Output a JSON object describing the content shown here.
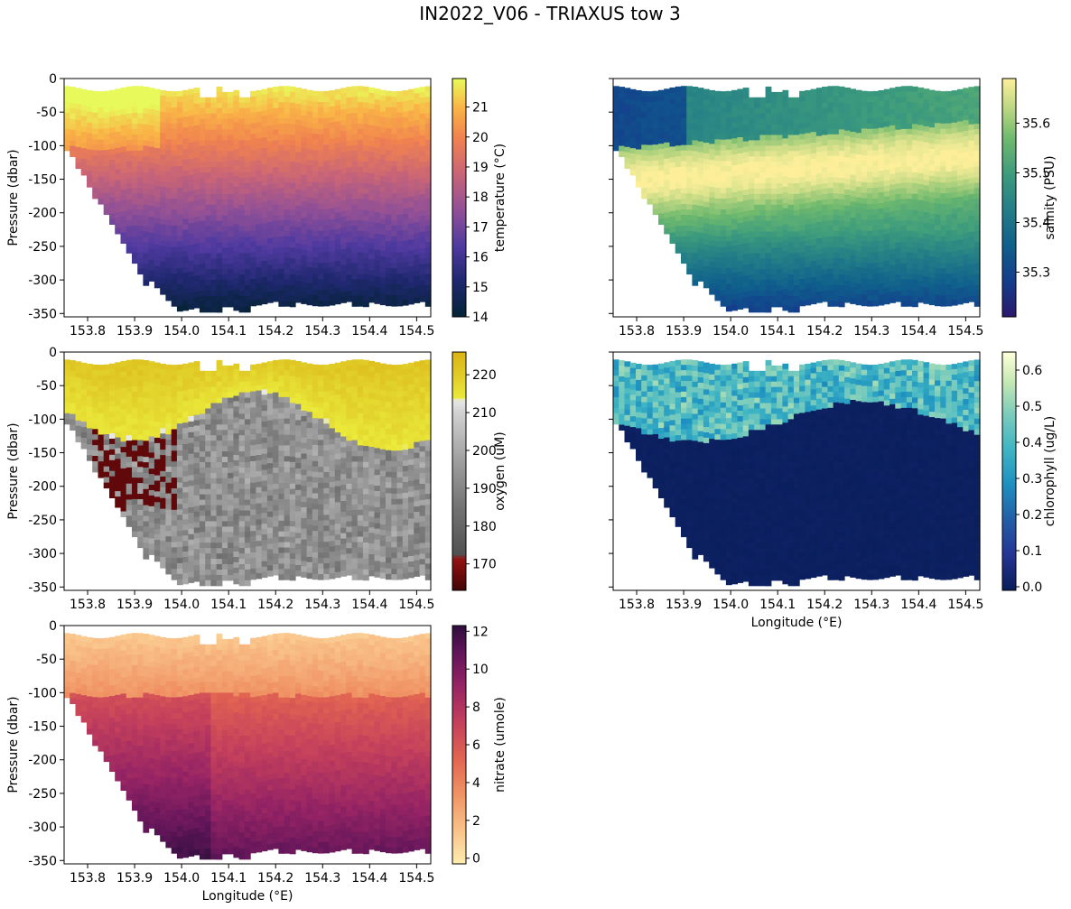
{
  "chart_data": {
    "title": "IN2022_V06 - TRIAXUS tow 3",
    "type": "heatmap",
    "panels": [
      {
        "name": "temperature",
        "xlabel": "",
        "ylabel": "Pressure (dbar)",
        "xticks": [
          "153.8",
          "153.9",
          "154.0",
          "154.1",
          "154.2",
          "154.3",
          "154.4",
          "154.5"
        ],
        "yticks": [
          "0",
          "-50",
          "-100",
          "-150",
          "-200",
          "-250",
          "-300",
          "-350"
        ],
        "xlim": [
          153.75,
          154.53
        ],
        "ylim": [
          -355,
          0
        ],
        "colorbar": {
          "label": "temperature (°C)",
          "ticks": [
            "14",
            "15",
            "16",
            "17",
            "18",
            "19",
            "20",
            "21"
          ],
          "range": [
            14.0,
            21.95
          ],
          "colormap": "thermal"
        }
      },
      {
        "name": "salinity",
        "xlabel": "",
        "ylabel": "",
        "xticks": [
          "153.8",
          "153.9",
          "154.0",
          "154.1",
          "154.2",
          "154.3",
          "154.4",
          "154.5"
        ],
        "yticks": [],
        "xlim": [
          153.75,
          154.53
        ],
        "ylim": [
          -355,
          0
        ],
        "colorbar": {
          "label": "salinity (PSU)",
          "ticks": [
            "35.3",
            "35.4",
            "35.5",
            "35.6"
          ],
          "range": [
            35.21,
            35.69
          ],
          "colormap": "haline"
        }
      },
      {
        "name": "oxygen",
        "xlabel": "",
        "ylabel": "Pressure (dbar)",
        "xticks": [
          "153.8",
          "153.9",
          "154.0",
          "154.1",
          "154.2",
          "154.3",
          "154.4",
          "154.5"
        ],
        "yticks": [
          "0",
          "-50",
          "-100",
          "-150",
          "-200",
          "-250",
          "-300",
          "-350"
        ],
        "xlim": [
          153.75,
          154.53
        ],
        "ylim": [
          -355,
          0
        ],
        "colorbar": {
          "label": "oxygen (uM)",
          "ticks": [
            "170",
            "180",
            "190",
            "200",
            "210",
            "220"
          ],
          "range": [
            163,
            226
          ],
          "colormap": "oxy"
        }
      },
      {
        "name": "chlorophyll",
        "xlabel": "Longitude (°E)",
        "ylabel": "",
        "xticks": [
          "153.8",
          "153.9",
          "154.0",
          "154.1",
          "154.2",
          "154.3",
          "154.4",
          "154.5"
        ],
        "yticks": [],
        "xlim": [
          153.75,
          154.53
        ],
        "ylim": [
          -355,
          0
        ],
        "colorbar": {
          "label": "chlorophyll (ug/L)",
          "ticks": [
            "0.0",
            "0.1",
            "0.2",
            "0.3",
            "0.4",
            "0.5",
            "0.6"
          ],
          "range": [
            -0.01,
            0.65
          ],
          "colormap": "YlGnBu"
        }
      },
      {
        "name": "nitrate",
        "xlabel": "Longitude (°E)",
        "ylabel": "Pressure (dbar)",
        "xticks": [
          "153.8",
          "153.9",
          "154.0",
          "154.1",
          "154.2",
          "154.3",
          "154.4",
          "154.5"
        ],
        "yticks": [
          "0",
          "-50",
          "-100",
          "-150",
          "-200",
          "-250",
          "-300",
          "-350"
        ],
        "xlim": [
          153.75,
          154.53
        ],
        "ylim": [
          -355,
          0
        ],
        "colorbar": {
          "label": "nitrate (umole)",
          "ticks": [
            "0",
            "2",
            "4",
            "6",
            "8",
            "10",
            "12"
          ],
          "range": [
            -0.3,
            12.3
          ],
          "colormap": "matter"
        }
      }
    ]
  }
}
